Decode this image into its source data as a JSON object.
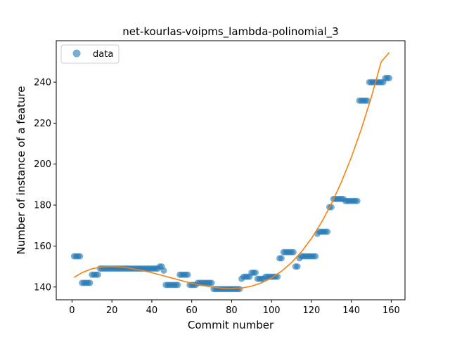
{
  "chart_data": {
    "type": "scatter",
    "title": "net-kourlas-voipms_lambda-polinomial_3",
    "xlabel": "Commit number",
    "ylabel": "Number of instance of a feature",
    "xlim": [
      -7.9,
      166.9
    ],
    "ylim": [
      133.75,
      260.25
    ],
    "xticks": [
      0,
      20,
      40,
      60,
      80,
      100,
      120,
      140,
      160
    ],
    "yticks": [
      140,
      160,
      180,
      200,
      220,
      240
    ],
    "legend": {
      "position": "upper-left",
      "label": "data"
    },
    "colors": {
      "points": "#1f77b4",
      "fit": "#ff7f0e"
    },
    "series": [
      {
        "name": "data",
        "kind": "points",
        "points": [
          [
            1,
            155
          ],
          [
            2,
            155
          ],
          [
            3,
            155
          ],
          [
            4,
            155
          ],
          [
            5,
            142
          ],
          [
            6,
            142
          ],
          [
            7,
            142
          ],
          [
            8,
            142
          ],
          [
            9,
            142
          ],
          [
            10,
            146
          ],
          [
            11,
            146
          ],
          [
            12,
            146
          ],
          [
            13,
            146
          ],
          [
            14,
            149
          ],
          [
            15,
            149
          ],
          [
            16,
            149
          ],
          [
            17,
            149
          ],
          [
            18,
            149
          ],
          [
            19,
            149
          ],
          [
            20,
            149
          ],
          [
            21,
            149
          ],
          [
            22,
            149
          ],
          [
            23,
            149
          ],
          [
            24,
            149
          ],
          [
            25,
            149
          ],
          [
            26,
            149
          ],
          [
            27,
            149
          ],
          [
            28,
            149
          ],
          [
            29,
            149
          ],
          [
            30,
            149
          ],
          [
            31,
            149
          ],
          [
            32,
            149
          ],
          [
            33,
            149
          ],
          [
            34,
            149
          ],
          [
            35,
            149
          ],
          [
            36,
            149
          ],
          [
            37,
            149
          ],
          [
            38,
            149
          ],
          [
            39,
            149
          ],
          [
            40,
            149
          ],
          [
            41,
            149
          ],
          [
            42,
            149
          ],
          [
            43,
            149
          ],
          [
            44,
            150
          ],
          [
            45,
            150
          ],
          [
            46,
            148
          ],
          [
            47,
            141
          ],
          [
            48,
            141
          ],
          [
            49,
            141
          ],
          [
            50,
            141
          ],
          [
            51,
            141
          ],
          [
            52,
            141
          ],
          [
            53,
            141
          ],
          [
            54,
            146
          ],
          [
            55,
            146
          ],
          [
            56,
            146
          ],
          [
            57,
            146
          ],
          [
            58,
            146
          ],
          [
            59,
            141
          ],
          [
            60,
            141
          ],
          [
            61,
            141
          ],
          [
            62,
            141
          ],
          [
            63,
            142
          ],
          [
            64,
            142
          ],
          [
            65,
            142
          ],
          [
            66,
            142
          ],
          [
            67,
            142
          ],
          [
            68,
            142
          ],
          [
            69,
            142
          ],
          [
            70,
            142
          ],
          [
            71,
            139
          ],
          [
            72,
            139
          ],
          [
            73,
            139
          ],
          [
            74,
            139
          ],
          [
            75,
            139
          ],
          [
            76,
            139
          ],
          [
            77,
            139
          ],
          [
            78,
            139
          ],
          [
            79,
            139
          ],
          [
            80,
            139
          ],
          [
            81,
            139
          ],
          [
            82,
            139
          ],
          [
            83,
            139
          ],
          [
            84,
            139
          ],
          [
            85,
            144
          ],
          [
            86,
            145
          ],
          [
            87,
            145
          ],
          [
            88,
            145
          ],
          [
            89,
            145
          ],
          [
            90,
            147
          ],
          [
            91,
            147
          ],
          [
            92,
            147
          ],
          [
            93,
            144
          ],
          [
            94,
            144
          ],
          [
            95,
            144
          ],
          [
            96,
            144
          ],
          [
            97,
            145
          ],
          [
            98,
            145
          ],
          [
            99,
            145
          ],
          [
            100,
            145
          ],
          [
            101,
            145
          ],
          [
            102,
            145
          ],
          [
            103,
            145
          ],
          [
            104,
            154
          ],
          [
            105,
            154
          ],
          [
            106,
            157
          ],
          [
            107,
            157
          ],
          [
            108,
            157
          ],
          [
            109,
            157
          ],
          [
            110,
            157
          ],
          [
            111,
            157
          ],
          [
            112,
            150
          ],
          [
            113,
            150
          ],
          [
            114,
            154
          ],
          [
            115,
            155
          ],
          [
            116,
            155
          ],
          [
            117,
            155
          ],
          [
            118,
            155
          ],
          [
            119,
            155
          ],
          [
            120,
            155
          ],
          [
            121,
            155
          ],
          [
            122,
            155
          ],
          [
            123,
            166
          ],
          [
            124,
            167
          ],
          [
            125,
            167
          ],
          [
            126,
            167
          ],
          [
            127,
            167
          ],
          [
            128,
            167
          ],
          [
            129,
            179
          ],
          [
            130,
            179
          ],
          [
            131,
            183
          ],
          [
            132,
            183
          ],
          [
            133,
            183
          ],
          [
            134,
            183
          ],
          [
            135,
            183
          ],
          [
            136,
            183
          ],
          [
            137,
            182
          ],
          [
            138,
            182
          ],
          [
            139,
            182
          ],
          [
            140,
            182
          ],
          [
            141,
            182
          ],
          [
            142,
            182
          ],
          [
            143,
            182
          ],
          [
            144,
            231
          ],
          [
            145,
            231
          ],
          [
            146,
            231
          ],
          [
            147,
            231
          ],
          [
            148,
            231
          ],
          [
            149,
            240
          ],
          [
            150,
            240
          ],
          [
            151,
            240
          ],
          [
            152,
            240
          ],
          [
            153,
            240
          ],
          [
            154,
            240
          ],
          [
            155,
            240
          ],
          [
            156,
            240
          ],
          [
            157,
            242
          ],
          [
            158,
            242
          ],
          [
            159,
            242
          ]
        ]
      },
      {
        "name": "polynomial fit",
        "kind": "line",
        "curve": [
          [
            1,
            144.7
          ],
          [
            5,
            147.0
          ],
          [
            10,
            148.9
          ],
          [
            15,
            149.8
          ],
          [
            20,
            150.0
          ],
          [
            25,
            149.7
          ],
          [
            30,
            149.0
          ],
          [
            35,
            148.1
          ],
          [
            40,
            147.0
          ],
          [
            45,
            145.7
          ],
          [
            50,
            144.4
          ],
          [
            55,
            143.1
          ],
          [
            60,
            141.8
          ],
          [
            65,
            140.8
          ],
          [
            70,
            140.0
          ],
          [
            75,
            139.4
          ],
          [
            80,
            139.2
          ],
          [
            85,
            139.5
          ],
          [
            90,
            140.4
          ],
          [
            95,
            142.0
          ],
          [
            100,
            144.4
          ],
          [
            105,
            147.7
          ],
          [
            110,
            151.9
          ],
          [
            115,
            157.2
          ],
          [
            120,
            163.7
          ],
          [
            125,
            171.5
          ],
          [
            130,
            180.6
          ],
          [
            135,
            191.2
          ],
          [
            140,
            203.3
          ],
          [
            145,
            217.1
          ],
          [
            150,
            232.6
          ],
          [
            155,
            250.0
          ],
          [
            159,
            254.5
          ]
        ]
      }
    ]
  }
}
